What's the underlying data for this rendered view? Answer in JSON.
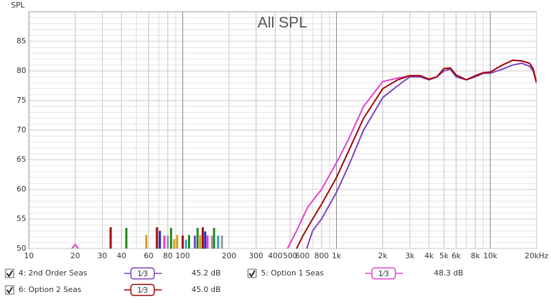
{
  "chart_data": {
    "type": "line",
    "title": "All SPL",
    "y_label": "SPL",
    "xscale": "log",
    "xlim": [
      10,
      20000
    ],
    "ylim": [
      50,
      90
    ],
    "grid": true,
    "yticks": [
      50,
      55,
      60,
      65,
      70,
      75,
      80,
      85
    ],
    "xticks": [
      10,
      20,
      30,
      40,
      60,
      80,
      100,
      200,
      300,
      400,
      500,
      600,
      800,
      {
        "value": 1000,
        "label": "1k"
      },
      {
        "value": 2000,
        "label": "2k"
      },
      {
        "value": 3000,
        "label": "3k"
      },
      {
        "value": 4000,
        "label": "4k"
      },
      {
        "value": 5000,
        "label": "5k"
      },
      {
        "value": 6000,
        "label": "6k"
      },
      {
        "value": 8000,
        "label": "8k"
      },
      {
        "value": 10000,
        "label": "10k"
      },
      {
        "value": 20000,
        "label": "20kHz"
      }
    ],
    "series": [
      {
        "name": "4: 2nd Order Seas",
        "color": "#7b3fb8",
        "smoothing": "1⁄3",
        "level": "45.2 dB",
        "x": [
          640,
          700,
          800,
          1000,
          1200,
          1500,
          2000,
          2500,
          3000,
          3500,
          4000,
          4500,
          5000,
          5500,
          6000,
          7000,
          8000,
          9000,
          10000,
          12000,
          14000,
          16000,
          18000,
          19000,
          20000
        ],
        "values": [
          50,
          53,
          55,
          59.5,
          64,
          70,
          75.5,
          77.5,
          79,
          79,
          78.5,
          79,
          80,
          80.3,
          79,
          78.5,
          79,
          79.6,
          79.6,
          80.3,
          81,
          81.3,
          80.8,
          80,
          78
        ]
      },
      {
        "name": "5: Option 1 Seas",
        "color": "#e040c8",
        "smoothing": "1⁄3",
        "level": "48.3 dB",
        "x": [
          19,
          20,
          21,
          null,
          480,
          550,
          650,
          800,
          1000,
          1200,
          1500,
          2000,
          2500,
          3000,
          3500,
          4000,
          4500,
          5000,
          5500,
          6000,
          7000,
          8000,
          9000,
          10000,
          12000,
          14000,
          16000,
          18000,
          19000,
          20000
        ],
        "values": [
          50,
          50.7,
          50,
          null,
          50,
          53,
          57,
          60,
          64.5,
          68.5,
          74,
          78.2,
          78.8,
          79.2,
          79.2,
          78.6,
          79,
          80.4,
          80.5,
          79.3,
          78.5,
          79.2,
          79.7,
          79.8,
          81,
          81.8,
          81.7,
          81.3,
          80.4,
          78
        ]
      },
      {
        "name": "6: Option 2 Seas",
        "color": "#a00000",
        "smoothing": "1⁄3",
        "level": "45.0 dB",
        "x": [
          550,
          600,
          700,
          800,
          1000,
          1200,
          1500,
          2000,
          2500,
          3000,
          3500,
          4000,
          4500,
          5000,
          5500,
          6000,
          7000,
          8000,
          9000,
          10000,
          12000,
          14000,
          16000,
          18000,
          19000,
          20000
        ],
        "values": [
          50,
          52,
          55,
          57.5,
          62,
          66.5,
          72,
          77,
          78.5,
          79.2,
          79.2,
          78.6,
          79,
          80.4,
          80.5,
          79.3,
          78.5,
          79.2,
          79.7,
          79.8,
          81,
          81.8,
          81.7,
          81.3,
          80.4,
          78
        ]
      }
    ],
    "markers": [
      {
        "x": 34,
        "value": 53.6,
        "color": "#a00000"
      },
      {
        "x": 43,
        "value": 53.5,
        "color": "#1a8a1a"
      },
      {
        "x": 58,
        "value": 52.3,
        "color": "#d0a020"
      },
      {
        "x": 68,
        "value": 53.6,
        "color": "#a00000"
      },
      {
        "x": 71,
        "value": 53,
        "color": "#2020c0"
      },
      {
        "x": 76,
        "value": 52.2,
        "color": "#e040c8"
      },
      {
        "x": 80,
        "value": 52.2,
        "color": "#9a9a9a"
      },
      {
        "x": 84,
        "value": 53.5,
        "color": "#1a8a1a"
      },
      {
        "x": 88,
        "value": 51.6,
        "color": "#d0a020"
      },
      {
        "x": 92,
        "value": 52.3,
        "color": "#d0a020"
      },
      {
        "x": 100,
        "value": 52.2,
        "color": "#a00000"
      },
      {
        "x": 105,
        "value": 51.5,
        "color": "#30a0c0"
      },
      {
        "x": 110,
        "value": 52.3,
        "color": "#1a8a1a"
      },
      {
        "x": 120,
        "value": 52.2,
        "color": "#7b3fb8"
      },
      {
        "x": 125,
        "value": 53.5,
        "color": "#1a8a1a"
      },
      {
        "x": 130,
        "value": 52.3,
        "color": "#d0a020"
      },
      {
        "x": 135,
        "value": 53.6,
        "color": "#a00000"
      },
      {
        "x": 140,
        "value": 52.9,
        "color": "#2020c0"
      },
      {
        "x": 145,
        "value": 52.2,
        "color": "#e040c8"
      },
      {
        "x": 155,
        "value": 52.2,
        "color": "#9a9a9a"
      },
      {
        "x": 160,
        "value": 53.5,
        "color": "#1a8a1a"
      },
      {
        "x": 170,
        "value": 52.2,
        "color": "#30a0c0"
      },
      {
        "x": 180,
        "value": 52.2,
        "color": "#9a9a9a"
      }
    ]
  }
}
